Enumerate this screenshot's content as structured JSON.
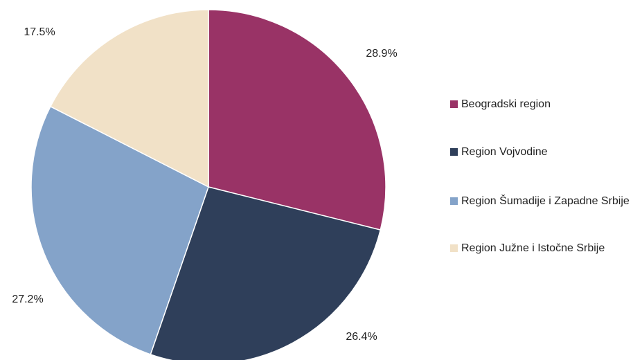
{
  "chart_data": {
    "type": "pie",
    "categories": [
      "Beogradski region",
      "Region Vojvodine",
      "Region Šumadije i Zapadne Srbije",
      "Region Južne i Istočne Srbije"
    ],
    "values": [
      28.9,
      26.4,
      27.2,
      17.5
    ],
    "value_labels": [
      "28.9%",
      "26.4%",
      "27.2%",
      "17.5%"
    ],
    "colors": [
      "#993366",
      "#2f3f5a",
      "#84a3c9",
      "#f1e1c7"
    ],
    "legend": "right"
  }
}
